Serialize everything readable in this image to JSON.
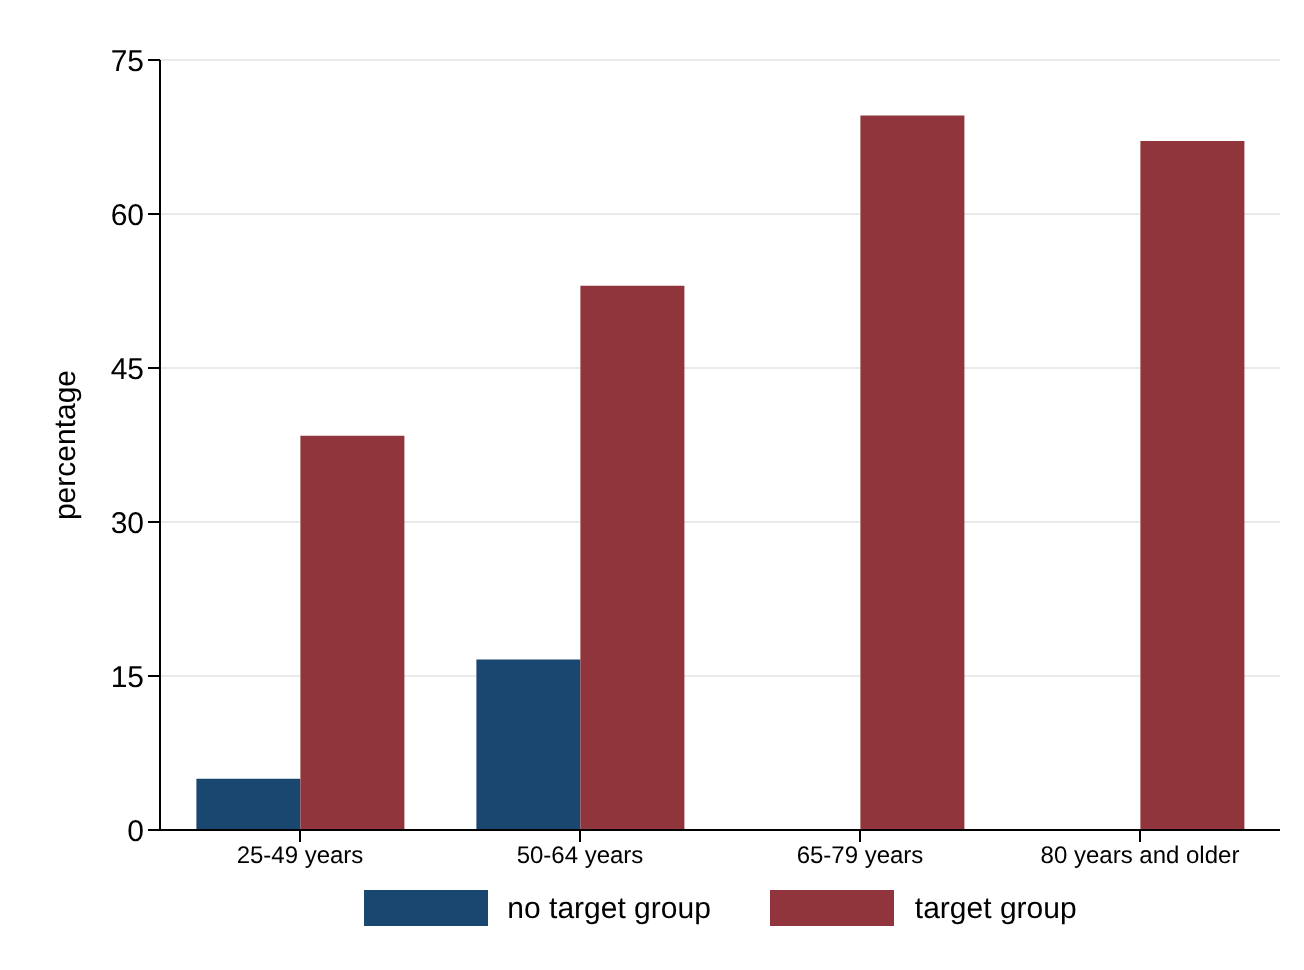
{
  "chart_data": {
    "type": "bar",
    "ylabel": "percentage",
    "categories": [
      "25-49 years",
      "50-64 years",
      "65-79 years",
      "80 years and older"
    ],
    "series": [
      {
        "name": "no target group",
        "color": "#1a476f",
        "values": [
          5.0,
          16.6,
          null,
          null
        ]
      },
      {
        "name": "target group",
        "color": "#90353b",
        "values": [
          38.4,
          53.0,
          69.6,
          67.1
        ]
      }
    ],
    "ylim": [
      0,
      75
    ],
    "yticks": [
      0,
      15,
      30,
      45,
      60,
      75
    ],
    "grid": "y",
    "legend": "bottom"
  }
}
